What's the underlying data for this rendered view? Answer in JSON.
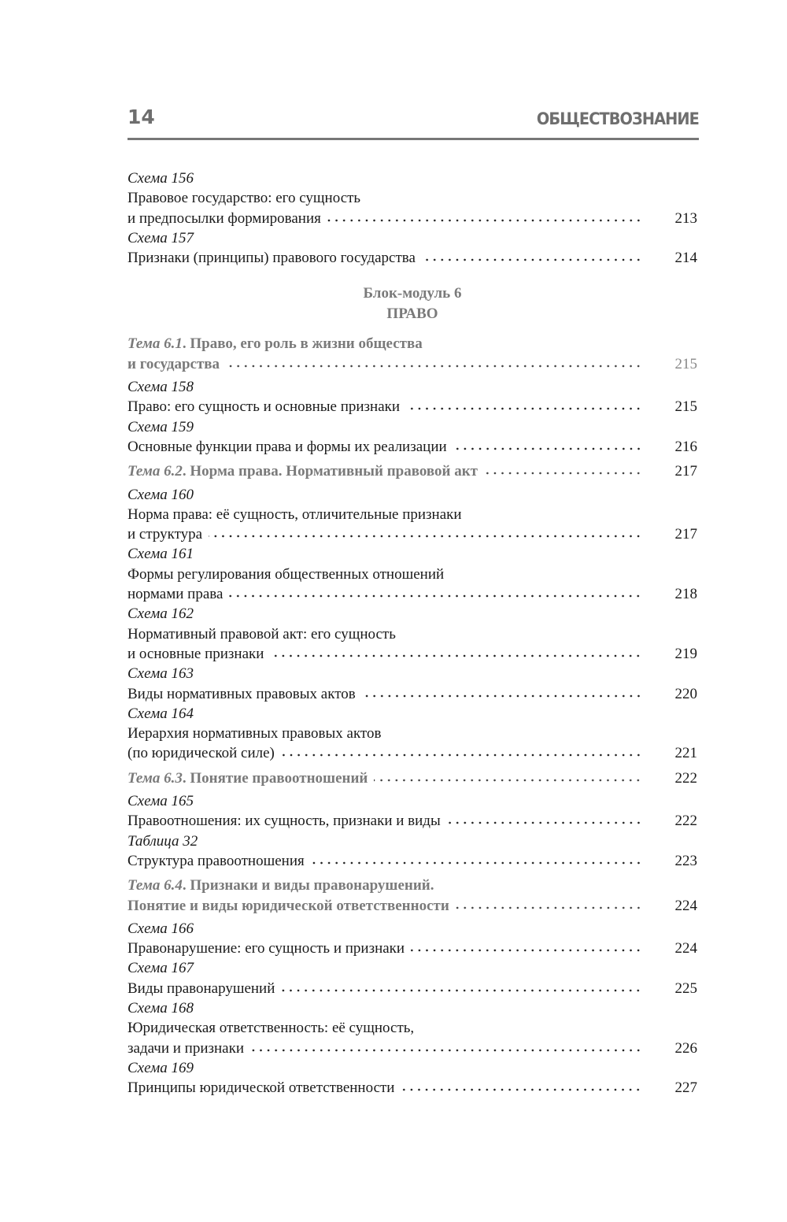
{
  "header": {
    "page_number": "14",
    "running_title": "ОБЩЕСТВОЗНАНИЕ"
  },
  "colors": {
    "muted_gray": "#7a7a7a",
    "text": "#1a1a1a"
  },
  "toc_before": [
    {
      "kind": "schema",
      "label": "Схема 156",
      "lines": [
        "Правовое государство: его сущность",
        "и предпосылки формирования"
      ],
      "page": "213"
    },
    {
      "kind": "schema",
      "label": "Схема 157",
      "lines": [
        "Признаки (принципы) правового государства"
      ],
      "page": "214"
    }
  ],
  "block": {
    "title": "Блок-модуль 6",
    "subtitle": "ПРАВО"
  },
  "toc_after": [
    {
      "kind": "theme",
      "label": "Тема 6.1",
      "lines": [
        "Право, его роль в жизни общества",
        "и государства"
      ],
      "page": "215",
      "muted_page": true
    },
    {
      "kind": "schema",
      "label": "Схема 158",
      "lines": [
        "Право: его сущность и основные признаки"
      ],
      "page": "215"
    },
    {
      "kind": "schema",
      "label": "Схема 159",
      "lines": [
        "Основные функции права и формы их реализации"
      ],
      "page": "216"
    },
    {
      "kind": "theme",
      "label": "Тема 6.2",
      "lines": [
        "Норма права. Нормативный правовой акт"
      ],
      "page": "217"
    },
    {
      "kind": "schema",
      "label": "Схема 160",
      "lines": [
        "Норма права: её сущность, отличительные признаки",
        "и структура"
      ],
      "page": "217"
    },
    {
      "kind": "schema",
      "label": "Схема 161",
      "lines": [
        "Формы регулирования общественных отношений",
        "нормами права"
      ],
      "page": "218"
    },
    {
      "kind": "schema",
      "label": "Схема 162",
      "lines": [
        "Нормативный правовой акт: его сущность",
        "и основные признаки"
      ],
      "page": "219"
    },
    {
      "kind": "schema",
      "label": "Схема 163",
      "lines": [
        "Виды нормативных правовых актов"
      ],
      "page": "220"
    },
    {
      "kind": "schema",
      "label": "Схема 164",
      "lines": [
        "Иерархия нормативных правовых актов",
        "(по юридической силе)"
      ],
      "page": "221"
    },
    {
      "kind": "theme",
      "label": "Тема 6.3",
      "lines": [
        "Понятие правоотношений"
      ],
      "page": "222"
    },
    {
      "kind": "schema",
      "label": "Схема 165",
      "lines": [
        "Правоотношения: их сущность, признаки и виды"
      ],
      "page": "222"
    },
    {
      "kind": "schema",
      "label": "Таблица 32",
      "lines": [
        "Структура правоотношения"
      ],
      "page": "223"
    },
    {
      "kind": "theme",
      "label": "Тема 6.4",
      "lines": [
        "Признаки и виды правонарушений.",
        "Понятие и виды юридической ответственности"
      ],
      "page": "224"
    },
    {
      "kind": "schema",
      "label": "Схема 166",
      "lines": [
        "Правонарушение: его сущность и признаки"
      ],
      "page": "224"
    },
    {
      "kind": "schema",
      "label": "Схема 167",
      "lines": [
        "Виды правонарушений"
      ],
      "page": "225"
    },
    {
      "kind": "schema",
      "label": "Схема 168",
      "lines": [
        "Юридическая ответственность: её сущность,",
        "задачи и признаки"
      ],
      "page": "226"
    },
    {
      "kind": "schema",
      "label": "Схема 169",
      "lines": [
        "Принципы юридической ответственности"
      ],
      "page": "227"
    }
  ]
}
